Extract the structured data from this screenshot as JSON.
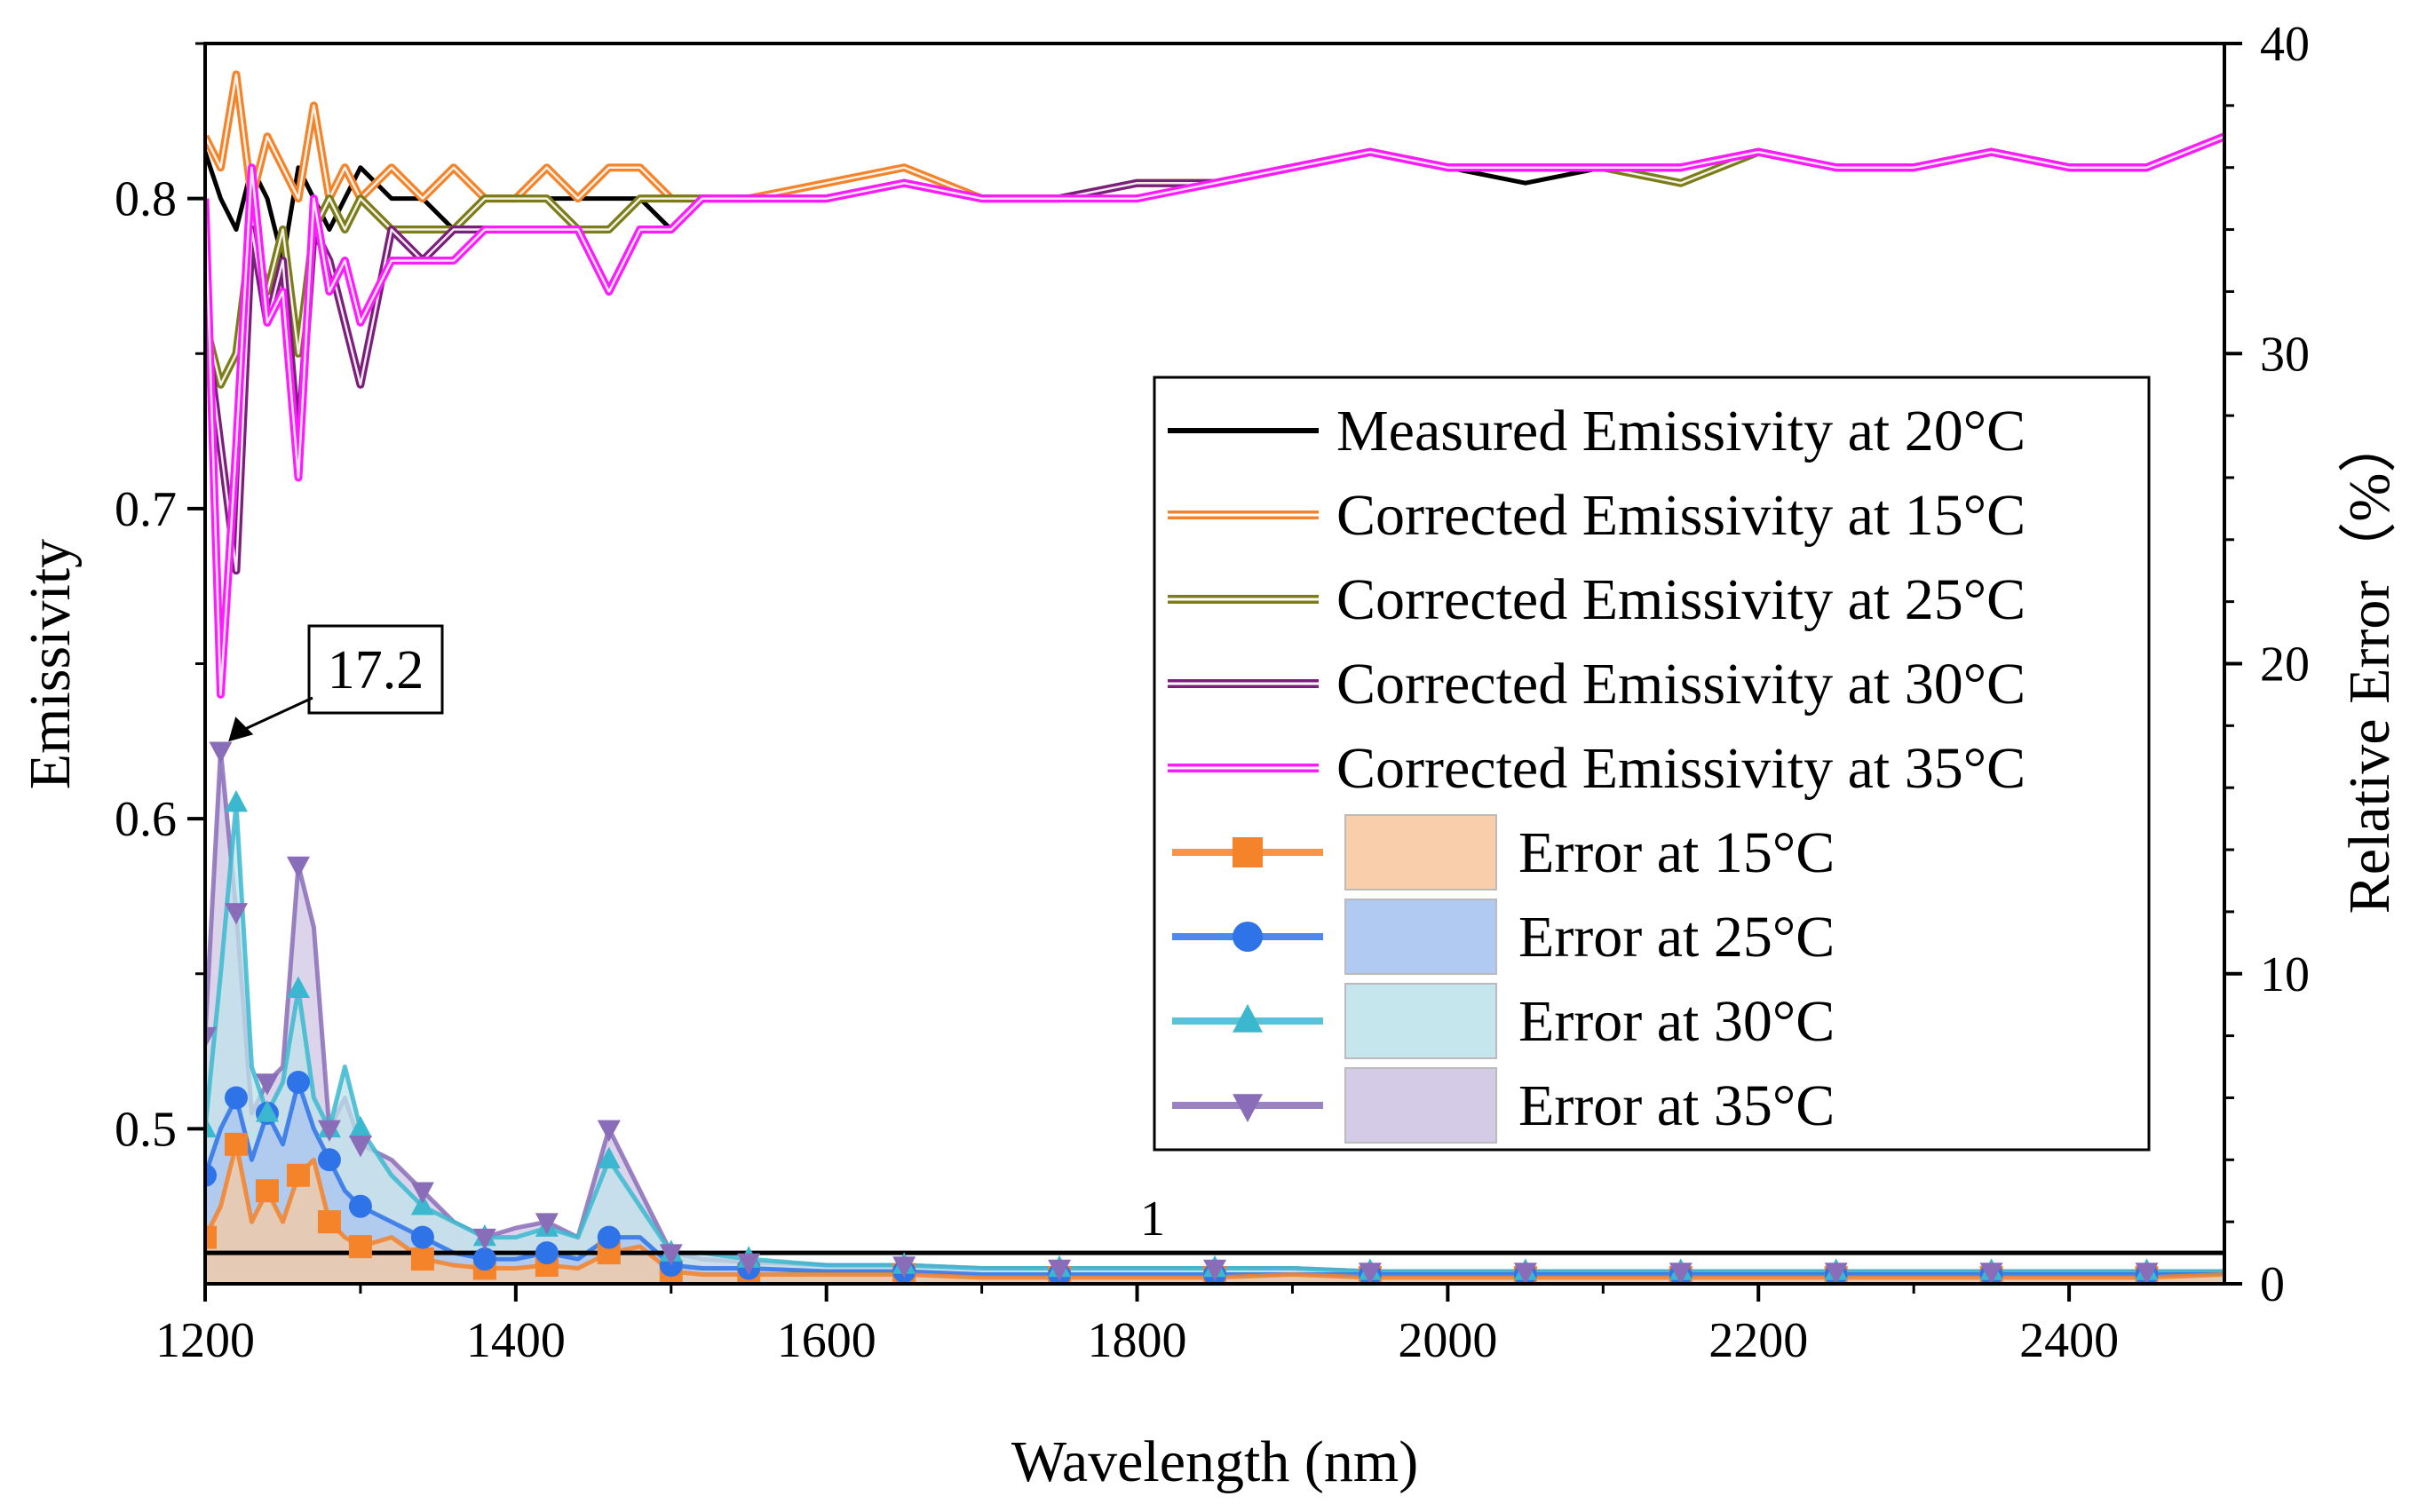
{
  "chart_data": {
    "type": "line",
    "xlabel": "Wavelength (nm)",
    "ylabel_left": "Emissivity",
    "ylabel_right": "Relative Error（%）",
    "xlim": [
      1200,
      2500
    ],
    "ylim_left": [
      0.45,
      0.85
    ],
    "ylim_right": [
      0,
      40
    ],
    "x_ticks": [
      1200,
      1400,
      1600,
      1800,
      2000,
      2200,
      2400
    ],
    "y_left_ticks": [
      0.5,
      0.6,
      0.7,
      0.8
    ],
    "y_right_ticks": [
      0,
      10,
      20,
      30,
      40
    ],
    "x_tick_labels": [
      "1200",
      "1400",
      "1600",
      "1800",
      "2000",
      "2200",
      "2400"
    ],
    "y_left_tick_labels": [
      "0.5",
      "0.6",
      "0.7",
      "0.8"
    ],
    "y_right_tick_labels": [
      "0",
      "10",
      "20",
      "30",
      "40"
    ],
    "annotations": [
      {
        "text": "17.2",
        "x": 1215,
        "y_error": 17.2
      },
      {
        "text": "1",
        "x": 1810,
        "y_error": 1
      }
    ],
    "reference_line": {
      "y_error": 1
    },
    "emissivity_series": [
      {
        "name": "Measured Emissivity at 20°C",
        "color": "#000000",
        "x": [
          1200,
          1210,
          1220,
          1230,
          1240,
          1250,
          1260,
          1270,
          1280,
          1290,
          1300,
          1320,
          1340,
          1360,
          1380,
          1400,
          1420,
          1440,
          1460,
          1480,
          1500,
          1520,
          1550,
          1600,
          1650,
          1700,
          1750,
          1800,
          1850,
          1900,
          1950,
          2000,
          2050,
          2100,
          2150,
          2200,
          2250,
          2300,
          2350,
          2400,
          2450,
          2500
        ],
        "y": [
          0.815,
          0.8,
          0.79,
          0.81,
          0.8,
          0.78,
          0.81,
          0.8,
          0.79,
          0.8,
          0.81,
          0.8,
          0.8,
          0.79,
          0.8,
          0.8,
          0.8,
          0.8,
          0.8,
          0.8,
          0.79,
          0.8,
          0.8,
          0.8,
          0.805,
          0.8,
          0.8,
          0.8,
          0.805,
          0.81,
          0.815,
          0.81,
          0.805,
          0.81,
          0.805,
          0.815,
          0.81,
          0.81,
          0.815,
          0.81,
          0.81,
          0.82
        ]
      },
      {
        "name": "Corrected Emissivity at 15°C",
        "color": "#f5832a",
        "x": [
          1200,
          1210,
          1220,
          1230,
          1240,
          1250,
          1260,
          1270,
          1280,
          1290,
          1300,
          1320,
          1340,
          1360,
          1380,
          1400,
          1420,
          1440,
          1460,
          1480,
          1500,
          1520,
          1550,
          1600,
          1650,
          1700,
          1750,
          1800,
          1850,
          1900,
          1950,
          2000,
          2050,
          2100,
          2150,
          2200,
          2250,
          2300,
          2350,
          2400,
          2450,
          2500
        ],
        "y": [
          0.82,
          0.81,
          0.84,
          0.8,
          0.82,
          0.81,
          0.8,
          0.83,
          0.8,
          0.81,
          0.8,
          0.81,
          0.8,
          0.81,
          0.8,
          0.8,
          0.81,
          0.8,
          0.81,
          0.81,
          0.8,
          0.8,
          0.8,
          0.805,
          0.81,
          0.8,
          0.8,
          0.805,
          0.805,
          0.81,
          0.815,
          0.81,
          0.81,
          0.81,
          0.81,
          0.815,
          0.81,
          0.81,
          0.815,
          0.81,
          0.81,
          0.82
        ]
      },
      {
        "name": "Corrected Emissivity at 25°C",
        "color": "#7c7c1a",
        "x": [
          1200,
          1210,
          1220,
          1230,
          1240,
          1250,
          1260,
          1270,
          1280,
          1290,
          1300,
          1320,
          1340,
          1360,
          1380,
          1400,
          1420,
          1440,
          1460,
          1480,
          1500,
          1520,
          1550,
          1600,
          1650,
          1700,
          1750,
          1800,
          1850,
          1900,
          1950,
          2000,
          2050,
          2100,
          2150,
          2200,
          2250,
          2300,
          2350,
          2400,
          2450,
          2500
        ],
        "y": [
          0.76,
          0.74,
          0.75,
          0.79,
          0.77,
          0.79,
          0.75,
          0.79,
          0.8,
          0.79,
          0.8,
          0.79,
          0.79,
          0.79,
          0.8,
          0.8,
          0.8,
          0.79,
          0.79,
          0.8,
          0.8,
          0.8,
          0.8,
          0.8,
          0.805,
          0.8,
          0.8,
          0.805,
          0.805,
          0.81,
          0.815,
          0.81,
          0.81,
          0.81,
          0.805,
          0.815,
          0.81,
          0.81,
          0.815,
          0.81,
          0.81,
          0.82
        ]
      },
      {
        "name": "Corrected Emissivity at 30°C",
        "color": "#7a1f7a",
        "x": [
          1200,
          1210,
          1220,
          1230,
          1240,
          1250,
          1260,
          1270,
          1280,
          1290,
          1300,
          1320,
          1340,
          1360,
          1380,
          1400,
          1420,
          1440,
          1460,
          1480,
          1500,
          1520,
          1550,
          1600,
          1650,
          1700,
          1750,
          1800,
          1850,
          1900,
          1950,
          2000,
          2050,
          2100,
          2150,
          2200,
          2250,
          2300,
          2350,
          2400,
          2450,
          2500
        ],
        "y": [
          0.76,
          0.72,
          0.68,
          0.79,
          0.76,
          0.78,
          0.72,
          0.79,
          0.78,
          0.76,
          0.74,
          0.79,
          0.78,
          0.79,
          0.79,
          0.79,
          0.79,
          0.79,
          0.77,
          0.79,
          0.79,
          0.8,
          0.8,
          0.8,
          0.805,
          0.8,
          0.8,
          0.805,
          0.805,
          0.81,
          0.815,
          0.81,
          0.81,
          0.81,
          0.81,
          0.815,
          0.81,
          0.81,
          0.815,
          0.81,
          0.81,
          0.82
        ]
      },
      {
        "name": "Corrected Emissivity at 35°C",
        "color": "#ff1aff",
        "x": [
          1200,
          1210,
          1220,
          1230,
          1240,
          1250,
          1260,
          1270,
          1280,
          1290,
          1300,
          1320,
          1340,
          1360,
          1380,
          1400,
          1420,
          1440,
          1460,
          1480,
          1500,
          1520,
          1550,
          1600,
          1650,
          1700,
          1750,
          1800,
          1850,
          1900,
          1950,
          2000,
          2050,
          2100,
          2150,
          2200,
          2250,
          2300,
          2350,
          2400,
          2450,
          2500
        ],
        "y": [
          0.8,
          0.64,
          0.72,
          0.81,
          0.76,
          0.77,
          0.71,
          0.8,
          0.77,
          0.78,
          0.76,
          0.78,
          0.78,
          0.78,
          0.79,
          0.79,
          0.79,
          0.79,
          0.77,
          0.79,
          0.79,
          0.8,
          0.8,
          0.8,
          0.805,
          0.8,
          0.8,
          0.8,
          0.805,
          0.81,
          0.815,
          0.81,
          0.81,
          0.81,
          0.81,
          0.815,
          0.81,
          0.81,
          0.815,
          0.81,
          0.81,
          0.82
        ]
      }
    ],
    "error_series": [
      {
        "name": "Error at 15°C",
        "color": "#f5832a",
        "fill": "#f7c9a2",
        "marker": "square",
        "x": [
          1200,
          1210,
          1220,
          1230,
          1240,
          1250,
          1260,
          1270,
          1280,
          1290,
          1300,
          1320,
          1340,
          1360,
          1380,
          1400,
          1420,
          1440,
          1460,
          1480,
          1500,
          1520,
          1550,
          1600,
          1650,
          1700,
          1750,
          1800,
          1850,
          1900,
          1950,
          2000,
          2050,
          2100,
          2150,
          2200,
          2250,
          2300,
          2350,
          2400,
          2450,
          2500
        ],
        "y": [
          1.5,
          2.5,
          4.5,
          2.0,
          3.0,
          2.0,
          3.5,
          4.0,
          2.0,
          1.5,
          1.2,
          1.5,
          0.8,
          0.6,
          0.5,
          0.5,
          0.6,
          0.5,
          1.0,
          1.2,
          0.4,
          0.3,
          0.3,
          0.3,
          0.3,
          0.2,
          0.2,
          0.2,
          0.2,
          0.3,
          0.2,
          0.2,
          0.2,
          0.2,
          0.2,
          0.2,
          0.2,
          0.2,
          0.2,
          0.2,
          0.2,
          0.3
        ]
      },
      {
        "name": "Error at 25°C",
        "color": "#2e73e8",
        "fill": "#a9c4ef",
        "marker": "circle",
        "x": [
          1200,
          1210,
          1220,
          1230,
          1240,
          1250,
          1260,
          1270,
          1280,
          1290,
          1300,
          1320,
          1340,
          1360,
          1380,
          1400,
          1420,
          1440,
          1460,
          1480,
          1500,
          1520,
          1550,
          1600,
          1650,
          1700,
          1750,
          1800,
          1850,
          1900,
          1950,
          2000,
          2050,
          2100,
          2150,
          2200,
          2250,
          2300,
          2350,
          2400,
          2450,
          2500
        ],
        "y": [
          3.5,
          5.0,
          6.0,
          4.0,
          5.5,
          4.5,
          6.5,
          5.0,
          4.0,
          3.0,
          2.5,
          2.0,
          1.5,
          1.0,
          0.8,
          0.8,
          1.0,
          0.8,
          1.5,
          1.5,
          0.6,
          0.5,
          0.5,
          0.4,
          0.4,
          0.3,
          0.3,
          0.3,
          0.3,
          0.3,
          0.3,
          0.3,
          0.3,
          0.3,
          0.3,
          0.3,
          0.3,
          0.3,
          0.3,
          0.3,
          0.3,
          0.3
        ]
      },
      {
        "name": "Error at 30°C",
        "color": "#3bb8cf",
        "fill": "#bfe3ea",
        "marker": "triangle-up",
        "x": [
          1200,
          1210,
          1220,
          1230,
          1240,
          1250,
          1260,
          1270,
          1280,
          1290,
          1300,
          1320,
          1340,
          1360,
          1380,
          1400,
          1420,
          1440,
          1460,
          1480,
          1500,
          1520,
          1550,
          1600,
          1650,
          1700,
          1750,
          1800,
          1850,
          1900,
          1950,
          2000,
          2050,
          2100,
          2150,
          2200,
          2250,
          2300,
          2350,
          2400,
          2450,
          2500
        ],
        "y": [
          5.0,
          10.0,
          15.5,
          7.0,
          5.5,
          6.5,
          9.5,
          6.0,
          5.0,
          7.0,
          5.0,
          3.5,
          2.5,
          2.0,
          1.5,
          1.5,
          1.8,
          1.5,
          4.0,
          2.5,
          1.0,
          1.0,
          0.8,
          0.6,
          0.6,
          0.5,
          0.5,
          0.5,
          0.5,
          0.5,
          0.4,
          0.4,
          0.4,
          0.4,
          0.4,
          0.4,
          0.4,
          0.4,
          0.4,
          0.4,
          0.4,
          0.4
        ]
      },
      {
        "name": "Error at 35°C",
        "color": "#8a6db8",
        "fill": "#cfc5e3",
        "marker": "triangle-down",
        "x": [
          1200,
          1210,
          1220,
          1230,
          1240,
          1250,
          1260,
          1270,
          1280,
          1290,
          1300,
          1320,
          1340,
          1360,
          1380,
          1400,
          1420,
          1440,
          1460,
          1480,
          1500,
          1520,
          1550,
          1600,
          1650,
          1700,
          1750,
          1800,
          1850,
          1900,
          1950,
          2000,
          2050,
          2100,
          2150,
          2200,
          2250,
          2300,
          2350,
          2400,
          2450,
          2500
        ],
        "y": [
          8.0,
          17.2,
          12.0,
          5.5,
          6.5,
          7.0,
          13.5,
          11.5,
          5.0,
          6.0,
          4.5,
          4.0,
          3.0,
          2.0,
          1.5,
          1.8,
          2.0,
          1.5,
          5.0,
          3.0,
          1.0,
          0.8,
          0.7,
          0.6,
          0.6,
          0.5,
          0.5,
          0.5,
          0.5,
          0.5,
          0.4,
          0.4,
          0.4,
          0.4,
          0.4,
          0.4,
          0.4,
          0.4,
          0.4,
          0.4,
          0.4,
          0.4
        ]
      }
    ]
  }
}
